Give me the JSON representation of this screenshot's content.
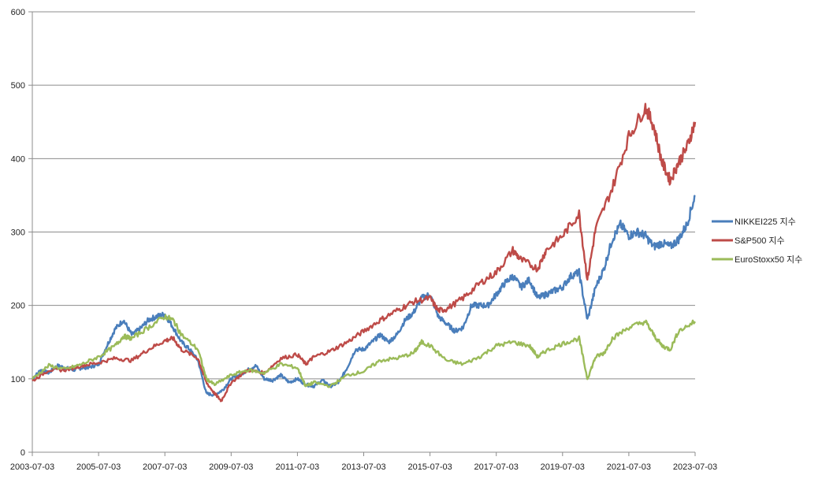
{
  "chart_data": {
    "type": "line",
    "x_ticks": [
      "2003-07-03",
      "2005-07-03",
      "2007-07-03",
      "2009-07-03",
      "2011-07-03",
      "2013-07-03",
      "2015-07-03",
      "2017-07-03",
      "2019-07-03",
      "2021-07-03",
      "2023-07-03"
    ],
    "y_ticks": [
      "0",
      "100",
      "200",
      "300",
      "400",
      "500",
      "600"
    ],
    "xlim": [
      2003.5,
      2023.5
    ],
    "ylim": [
      0,
      600
    ],
    "grid": "horizontal",
    "legend": "right",
    "series": [
      {
        "name": "NIKKEI225 지수",
        "color": "#4a7ebb",
        "points": [
          [
            2003.5,
            100
          ],
          [
            2003.75,
            112
          ],
          [
            2004.0,
            108
          ],
          [
            2004.25,
            118
          ],
          [
            2004.5,
            115
          ],
          [
            2004.75,
            112
          ],
          [
            2005.0,
            115
          ],
          [
            2005.25,
            116
          ],
          [
            2005.5,
            120
          ],
          [
            2005.75,
            145
          ],
          [
            2006.0,
            168
          ],
          [
            2006.25,
            180
          ],
          [
            2006.5,
            160
          ],
          [
            2006.75,
            168
          ],
          [
            2007.0,
            180
          ],
          [
            2007.25,
            185
          ],
          [
            2007.5,
            188
          ],
          [
            2007.75,
            170
          ],
          [
            2008.0,
            150
          ],
          [
            2008.25,
            140
          ],
          [
            2008.5,
            125
          ],
          [
            2008.75,
            80
          ],
          [
            2009.0,
            78
          ],
          [
            2009.25,
            85
          ],
          [
            2009.5,
            100
          ],
          [
            2009.75,
            105
          ],
          [
            2010.0,
            112
          ],
          [
            2010.25,
            118
          ],
          [
            2010.5,
            100
          ],
          [
            2010.75,
            98
          ],
          [
            2011.0,
            105
          ],
          [
            2011.25,
            95
          ],
          [
            2011.5,
            100
          ],
          [
            2011.75,
            92
          ],
          [
            2012.0,
            90
          ],
          [
            2012.25,
            98
          ],
          [
            2012.5,
            90
          ],
          [
            2012.75,
            95
          ],
          [
            2013.0,
            115
          ],
          [
            2013.25,
            140
          ],
          [
            2013.5,
            140
          ],
          [
            2013.75,
            150
          ],
          [
            2014.0,
            160
          ],
          [
            2014.25,
            150
          ],
          [
            2014.5,
            160
          ],
          [
            2014.75,
            180
          ],
          [
            2015.0,
            190
          ],
          [
            2015.25,
            210
          ],
          [
            2015.5,
            215
          ],
          [
            2015.75,
            185
          ],
          [
            2016.0,
            175
          ],
          [
            2016.25,
            165
          ],
          [
            2016.5,
            170
          ],
          [
            2016.75,
            200
          ],
          [
            2017.0,
            200
          ],
          [
            2017.25,
            200
          ],
          [
            2017.5,
            215
          ],
          [
            2017.75,
            230
          ],
          [
            2018.0,
            240
          ],
          [
            2018.25,
            225
          ],
          [
            2018.5,
            235
          ],
          [
            2018.75,
            210
          ],
          [
            2019.0,
            215
          ],
          [
            2019.25,
            220
          ],
          [
            2019.5,
            225
          ],
          [
            2019.75,
            240
          ],
          [
            2020.0,
            245
          ],
          [
            2020.25,
            180
          ],
          [
            2020.5,
            225
          ],
          [
            2020.75,
            250
          ],
          [
            2021.0,
            290
          ],
          [
            2021.25,
            310
          ],
          [
            2021.5,
            295
          ],
          [
            2021.75,
            300
          ],
          [
            2022.0,
            295
          ],
          [
            2022.25,
            280
          ],
          [
            2022.5,
            285
          ],
          [
            2022.75,
            280
          ],
          [
            2023.0,
            290
          ],
          [
            2023.25,
            310
          ],
          [
            2023.5,
            350
          ]
        ]
      },
      {
        "name": "S&P500 지수",
        "color": "#be4b48",
        "points": [
          [
            2003.5,
            97
          ],
          [
            2004.0,
            112
          ],
          [
            2004.5,
            112
          ],
          [
            2005.0,
            118
          ],
          [
            2005.5,
            122
          ],
          [
            2006.0,
            128
          ],
          [
            2006.5,
            125
          ],
          [
            2007.0,
            140
          ],
          [
            2007.5,
            152
          ],
          [
            2007.75,
            155
          ],
          [
            2008.0,
            140
          ],
          [
            2008.5,
            128
          ],
          [
            2008.75,
            95
          ],
          [
            2009.0,
            80
          ],
          [
            2009.2,
            70
          ],
          [
            2009.5,
            95
          ],
          [
            2010.0,
            112
          ],
          [
            2010.5,
            108
          ],
          [
            2011.0,
            128
          ],
          [
            2011.5,
            133
          ],
          [
            2011.75,
            120
          ],
          [
            2012.0,
            130
          ],
          [
            2012.5,
            138
          ],
          [
            2013.0,
            150
          ],
          [
            2013.5,
            165
          ],
          [
            2014.0,
            180
          ],
          [
            2014.5,
            193
          ],
          [
            2015.0,
            205
          ],
          [
            2015.5,
            210
          ],
          [
            2015.75,
            193
          ],
          [
            2016.0,
            195
          ],
          [
            2016.5,
            210
          ],
          [
            2017.0,
            230
          ],
          [
            2017.5,
            245
          ],
          [
            2018.0,
            275
          ],
          [
            2018.25,
            262
          ],
          [
            2018.75,
            250
          ],
          [
            2019.0,
            275
          ],
          [
            2019.5,
            295
          ],
          [
            2020.0,
            325
          ],
          [
            2020.25,
            235
          ],
          [
            2020.5,
            305
          ],
          [
            2021.0,
            360
          ],
          [
            2021.5,
            430
          ],
          [
            2022.0,
            470
          ],
          [
            2022.25,
            445
          ],
          [
            2022.5,
            395
          ],
          [
            2022.75,
            370
          ],
          [
            2023.0,
            395
          ],
          [
            2023.25,
            415
          ],
          [
            2023.5,
            450
          ]
        ]
      },
      {
        "name": "EuroStoxx50 지수",
        "color": "#9bbb59",
        "points": [
          [
            2003.5,
            100
          ],
          [
            2004.0,
            118
          ],
          [
            2004.5,
            113
          ],
          [
            2005.0,
            120
          ],
          [
            2005.5,
            130
          ],
          [
            2006.0,
            145
          ],
          [
            2006.25,
            158
          ],
          [
            2006.5,
            155
          ],
          [
            2007.0,
            170
          ],
          [
            2007.5,
            185
          ],
          [
            2007.75,
            180
          ],
          [
            2008.0,
            160
          ],
          [
            2008.5,
            140
          ],
          [
            2008.75,
            100
          ],
          [
            2009.0,
            92
          ],
          [
            2009.5,
            105
          ],
          [
            2010.0,
            112
          ],
          [
            2010.5,
            108
          ],
          [
            2011.0,
            120
          ],
          [
            2011.5,
            115
          ],
          [
            2011.75,
            90
          ],
          [
            2012.0,
            95
          ],
          [
            2012.5,
            90
          ],
          [
            2013.0,
            105
          ],
          [
            2013.5,
            110
          ],
          [
            2014.0,
            125
          ],
          [
            2014.5,
            128
          ],
          [
            2015.0,
            135
          ],
          [
            2015.25,
            150
          ],
          [
            2015.5,
            145
          ],
          [
            2016.0,
            125
          ],
          [
            2016.5,
            120
          ],
          [
            2017.0,
            130
          ],
          [
            2017.5,
            145
          ],
          [
            2018.0,
            150
          ],
          [
            2018.5,
            145
          ],
          [
            2018.75,
            130
          ],
          [
            2019.0,
            138
          ],
          [
            2019.5,
            148
          ],
          [
            2020.0,
            155
          ],
          [
            2020.25,
            100
          ],
          [
            2020.5,
            130
          ],
          [
            2020.75,
            135
          ],
          [
            2021.0,
            155
          ],
          [
            2021.5,
            170
          ],
          [
            2022.0,
            178
          ],
          [
            2022.25,
            160
          ],
          [
            2022.5,
            145
          ],
          [
            2022.75,
            140
          ],
          [
            2023.0,
            165
          ],
          [
            2023.5,
            178
          ]
        ]
      }
    ]
  }
}
